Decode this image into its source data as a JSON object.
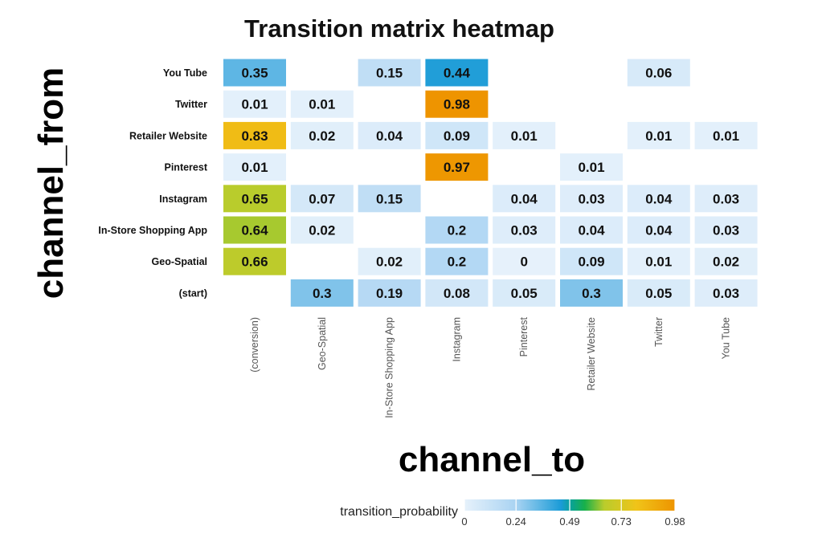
{
  "chart_data": {
    "type": "heatmap",
    "title": "Transition matrix heatmap",
    "xlabel": "channel_to",
    "ylabel": "channel_from",
    "x_categories": [
      "(conversion)",
      "Geo-Spatial",
      "In-Store Shopping App",
      "Instagram",
      "Pinterest",
      "Retailer Website",
      "Twitter",
      "You Tube"
    ],
    "y_categories": [
      "You Tube",
      "Twitter",
      "Retailer Website",
      "Pinterest",
      "Instagram",
      "In-Store Shopping App",
      "Geo-Spatial",
      "(start)"
    ],
    "cells": [
      {
        "from": "You Tube",
        "to": "(conversion)",
        "value": 0.35,
        "label": "0.35"
      },
      {
        "from": "You Tube",
        "to": "In-Store Shopping App",
        "value": 0.15,
        "label": "0.15"
      },
      {
        "from": "You Tube",
        "to": "Instagram",
        "value": 0.44,
        "label": "0.44"
      },
      {
        "from": "You Tube",
        "to": "Twitter",
        "value": 0.06,
        "label": "0.06"
      },
      {
        "from": "Twitter",
        "to": "(conversion)",
        "value": 0.01,
        "label": "0.01"
      },
      {
        "from": "Twitter",
        "to": "Geo-Spatial",
        "value": 0.01,
        "label": "0.01"
      },
      {
        "from": "Twitter",
        "to": "Instagram",
        "value": 0.98,
        "label": "0.98"
      },
      {
        "from": "Retailer Website",
        "to": "(conversion)",
        "value": 0.83,
        "label": "0.83"
      },
      {
        "from": "Retailer Website",
        "to": "Geo-Spatial",
        "value": 0.02,
        "label": "0.02"
      },
      {
        "from": "Retailer Website",
        "to": "In-Store Shopping App",
        "value": 0.04,
        "label": "0.04"
      },
      {
        "from": "Retailer Website",
        "to": "Instagram",
        "value": 0.09,
        "label": "0.09"
      },
      {
        "from": "Retailer Website",
        "to": "Pinterest",
        "value": 0.01,
        "label": "0.01"
      },
      {
        "from": "Retailer Website",
        "to": "Twitter",
        "value": 0.01,
        "label": "0.01"
      },
      {
        "from": "Retailer Website",
        "to": "You Tube",
        "value": 0.01,
        "label": "0.01"
      },
      {
        "from": "Pinterest",
        "to": "(conversion)",
        "value": 0.01,
        "label": "0.01"
      },
      {
        "from": "Pinterest",
        "to": "Instagram",
        "value": 0.97,
        "label": "0.97"
      },
      {
        "from": "Pinterest",
        "to": "Retailer Website",
        "value": 0.01,
        "label": "0.01"
      },
      {
        "from": "Instagram",
        "to": "(conversion)",
        "value": 0.65,
        "label": "0.65"
      },
      {
        "from": "Instagram",
        "to": "Geo-Spatial",
        "value": 0.07,
        "label": "0.07"
      },
      {
        "from": "Instagram",
        "to": "In-Store Shopping App",
        "value": 0.15,
        "label": "0.15"
      },
      {
        "from": "Instagram",
        "to": "Pinterest",
        "value": 0.04,
        "label": "0.04"
      },
      {
        "from": "Instagram",
        "to": "Retailer Website",
        "value": 0.03,
        "label": "0.03"
      },
      {
        "from": "Instagram",
        "to": "Twitter",
        "value": 0.04,
        "label": "0.04"
      },
      {
        "from": "Instagram",
        "to": "You Tube",
        "value": 0.03,
        "label": "0.03"
      },
      {
        "from": "In-Store Shopping App",
        "to": "(conversion)",
        "value": 0.64,
        "label": "0.64"
      },
      {
        "from": "In-Store Shopping App",
        "to": "Geo-Spatial",
        "value": 0.02,
        "label": "0.02"
      },
      {
        "from": "In-Store Shopping App",
        "to": "Instagram",
        "value": 0.2,
        "label": "0.2"
      },
      {
        "from": "In-Store Shopping App",
        "to": "Pinterest",
        "value": 0.03,
        "label": "0.03"
      },
      {
        "from": "In-Store Shopping App",
        "to": "Retailer Website",
        "value": 0.04,
        "label": "0.04"
      },
      {
        "from": "In-Store Shopping App",
        "to": "Twitter",
        "value": 0.04,
        "label": "0.04"
      },
      {
        "from": "In-Store Shopping App",
        "to": "You Tube",
        "value": 0.03,
        "label": "0.03"
      },
      {
        "from": "Geo-Spatial",
        "to": "(conversion)",
        "value": 0.66,
        "label": "0.66"
      },
      {
        "from": "Geo-Spatial",
        "to": "In-Store Shopping App",
        "value": 0.02,
        "label": "0.02"
      },
      {
        "from": "Geo-Spatial",
        "to": "Instagram",
        "value": 0.2,
        "label": "0.2"
      },
      {
        "from": "Geo-Spatial",
        "to": "Pinterest",
        "value": 0,
        "label": "0"
      },
      {
        "from": "Geo-Spatial",
        "to": "Retailer Website",
        "value": 0.09,
        "label": "0.09"
      },
      {
        "from": "Geo-Spatial",
        "to": "Twitter",
        "value": 0.01,
        "label": "0.01"
      },
      {
        "from": "Geo-Spatial",
        "to": "You Tube",
        "value": 0.02,
        "label": "0.02"
      },
      {
        "from": "(start)",
        "to": "Geo-Spatial",
        "value": 0.3,
        "label": "0.3"
      },
      {
        "from": "(start)",
        "to": "In-Store Shopping App",
        "value": 0.19,
        "label": "0.19"
      },
      {
        "from": "(start)",
        "to": "Instagram",
        "value": 0.08,
        "label": "0.08"
      },
      {
        "from": "(start)",
        "to": "Pinterest",
        "value": 0.05,
        "label": "0.05"
      },
      {
        "from": "(start)",
        "to": "Retailer Website",
        "value": 0.3,
        "label": "0.3"
      },
      {
        "from": "(start)",
        "to": "Twitter",
        "value": 0.05,
        "label": "0.05"
      },
      {
        "from": "(start)",
        "to": "You Tube",
        "value": 0.03,
        "label": "0.03"
      }
    ],
    "legend": {
      "title": "transition_probability",
      "placement": "bottom",
      "ticks": [
        {
          "value": 0,
          "label": "0"
        },
        {
          "value": 0.24,
          "label": "0.24"
        },
        {
          "value": 0.49,
          "label": "0.49"
        },
        {
          "value": 0.73,
          "label": "0.73"
        },
        {
          "value": 0.98,
          "label": "0.98"
        }
      ]
    },
    "color_scale": {
      "domain": [
        0,
        0.98
      ],
      "stops": [
        {
          "value": 0,
          "color": "#e6f1fb"
        },
        {
          "value": 0.24,
          "color": "#a9d3f2"
        },
        {
          "value": 0.45,
          "color": "#1a9bd7"
        },
        {
          "value": 0.5,
          "color": "#0aa392"
        },
        {
          "value": 0.56,
          "color": "#18b04a"
        },
        {
          "value": 0.65,
          "color": "#b9cc2c"
        },
        {
          "value": 0.8,
          "color": "#f0c419"
        },
        {
          "value": 0.98,
          "color": "#ee9400"
        }
      ]
    }
  }
}
